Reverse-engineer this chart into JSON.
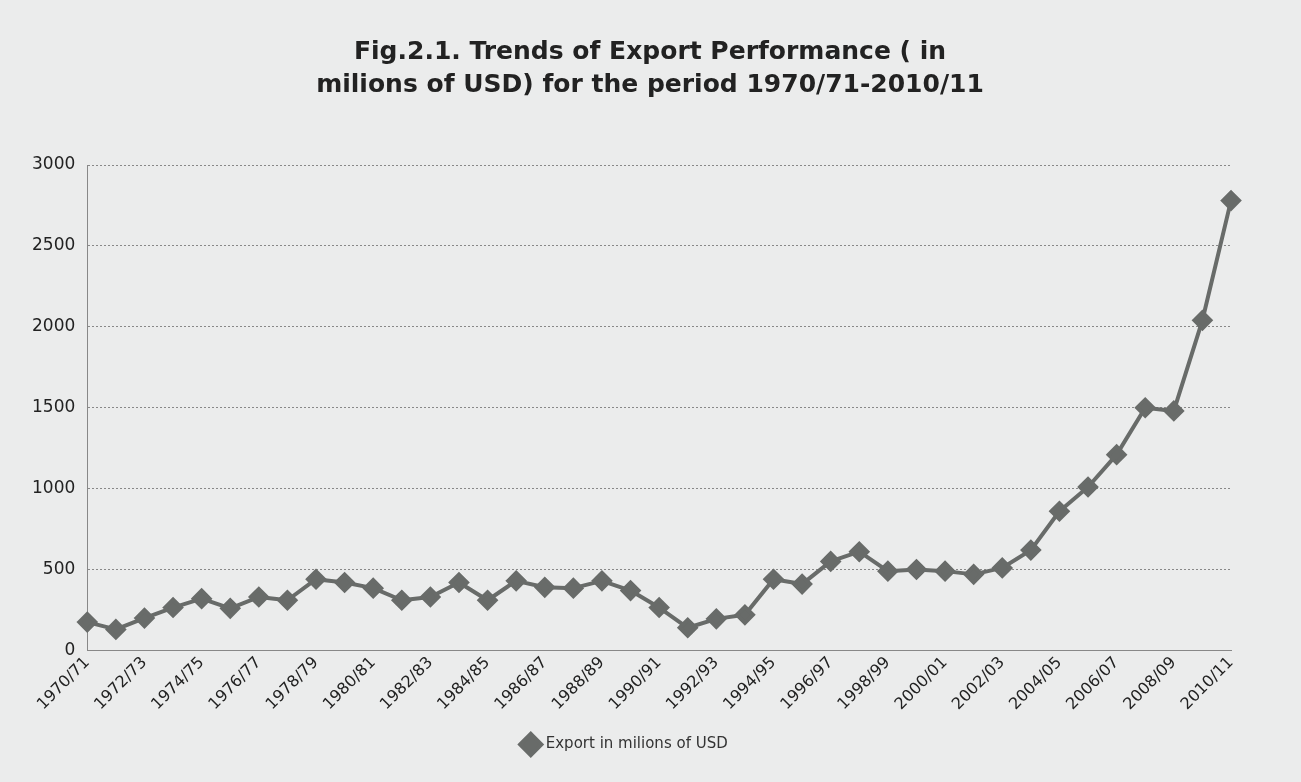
{
  "chart_data": {
    "type": "line",
    "title": "Fig.2.1. Trends of Export  Performance ( in milions of USD) for the period 1970/71-2010/11",
    "categories": [
      "1970/71",
      null,
      "1972/73",
      null,
      "1974/75",
      null,
      "1976/77",
      null,
      "1978/79",
      null,
      "1980/81",
      null,
      "1982/83",
      null,
      "1984/85",
      null,
      "1986/87",
      null,
      "1988/89",
      null,
      "1990/91",
      null,
      "1992/93",
      null,
      "1994/95",
      null,
      "1996/97",
      null,
      "1998/99",
      null,
      "2000/01",
      null,
      "2002/03",
      null,
      "2004/05",
      null,
      "2006/07",
      null,
      "2008/09",
      null,
      "2010/11"
    ],
    "series": [
      {
        "name": "Export in milions of USD",
        "color": "#686b69",
        "values": [
          175,
          130,
          200,
          265,
          320,
          260,
          330,
          310,
          440,
          420,
          385,
          310,
          330,
          420,
          310,
          430,
          390,
          385,
          430,
          370,
          265,
          140,
          195,
          220,
          440,
          410,
          550,
          610,
          490,
          500,
          490,
          470,
          510,
          620,
          860,
          1010,
          1210,
          1500,
          1480,
          2040,
          2780
        ]
      }
    ],
    "ylim": [
      0,
      3000
    ],
    "yticks": [
      0,
      500,
      1000,
      1500,
      2000,
      2500,
      3000
    ],
    "grid": "y",
    "legend": "bottom",
    "marker": "diamond",
    "line_style": "solid"
  }
}
